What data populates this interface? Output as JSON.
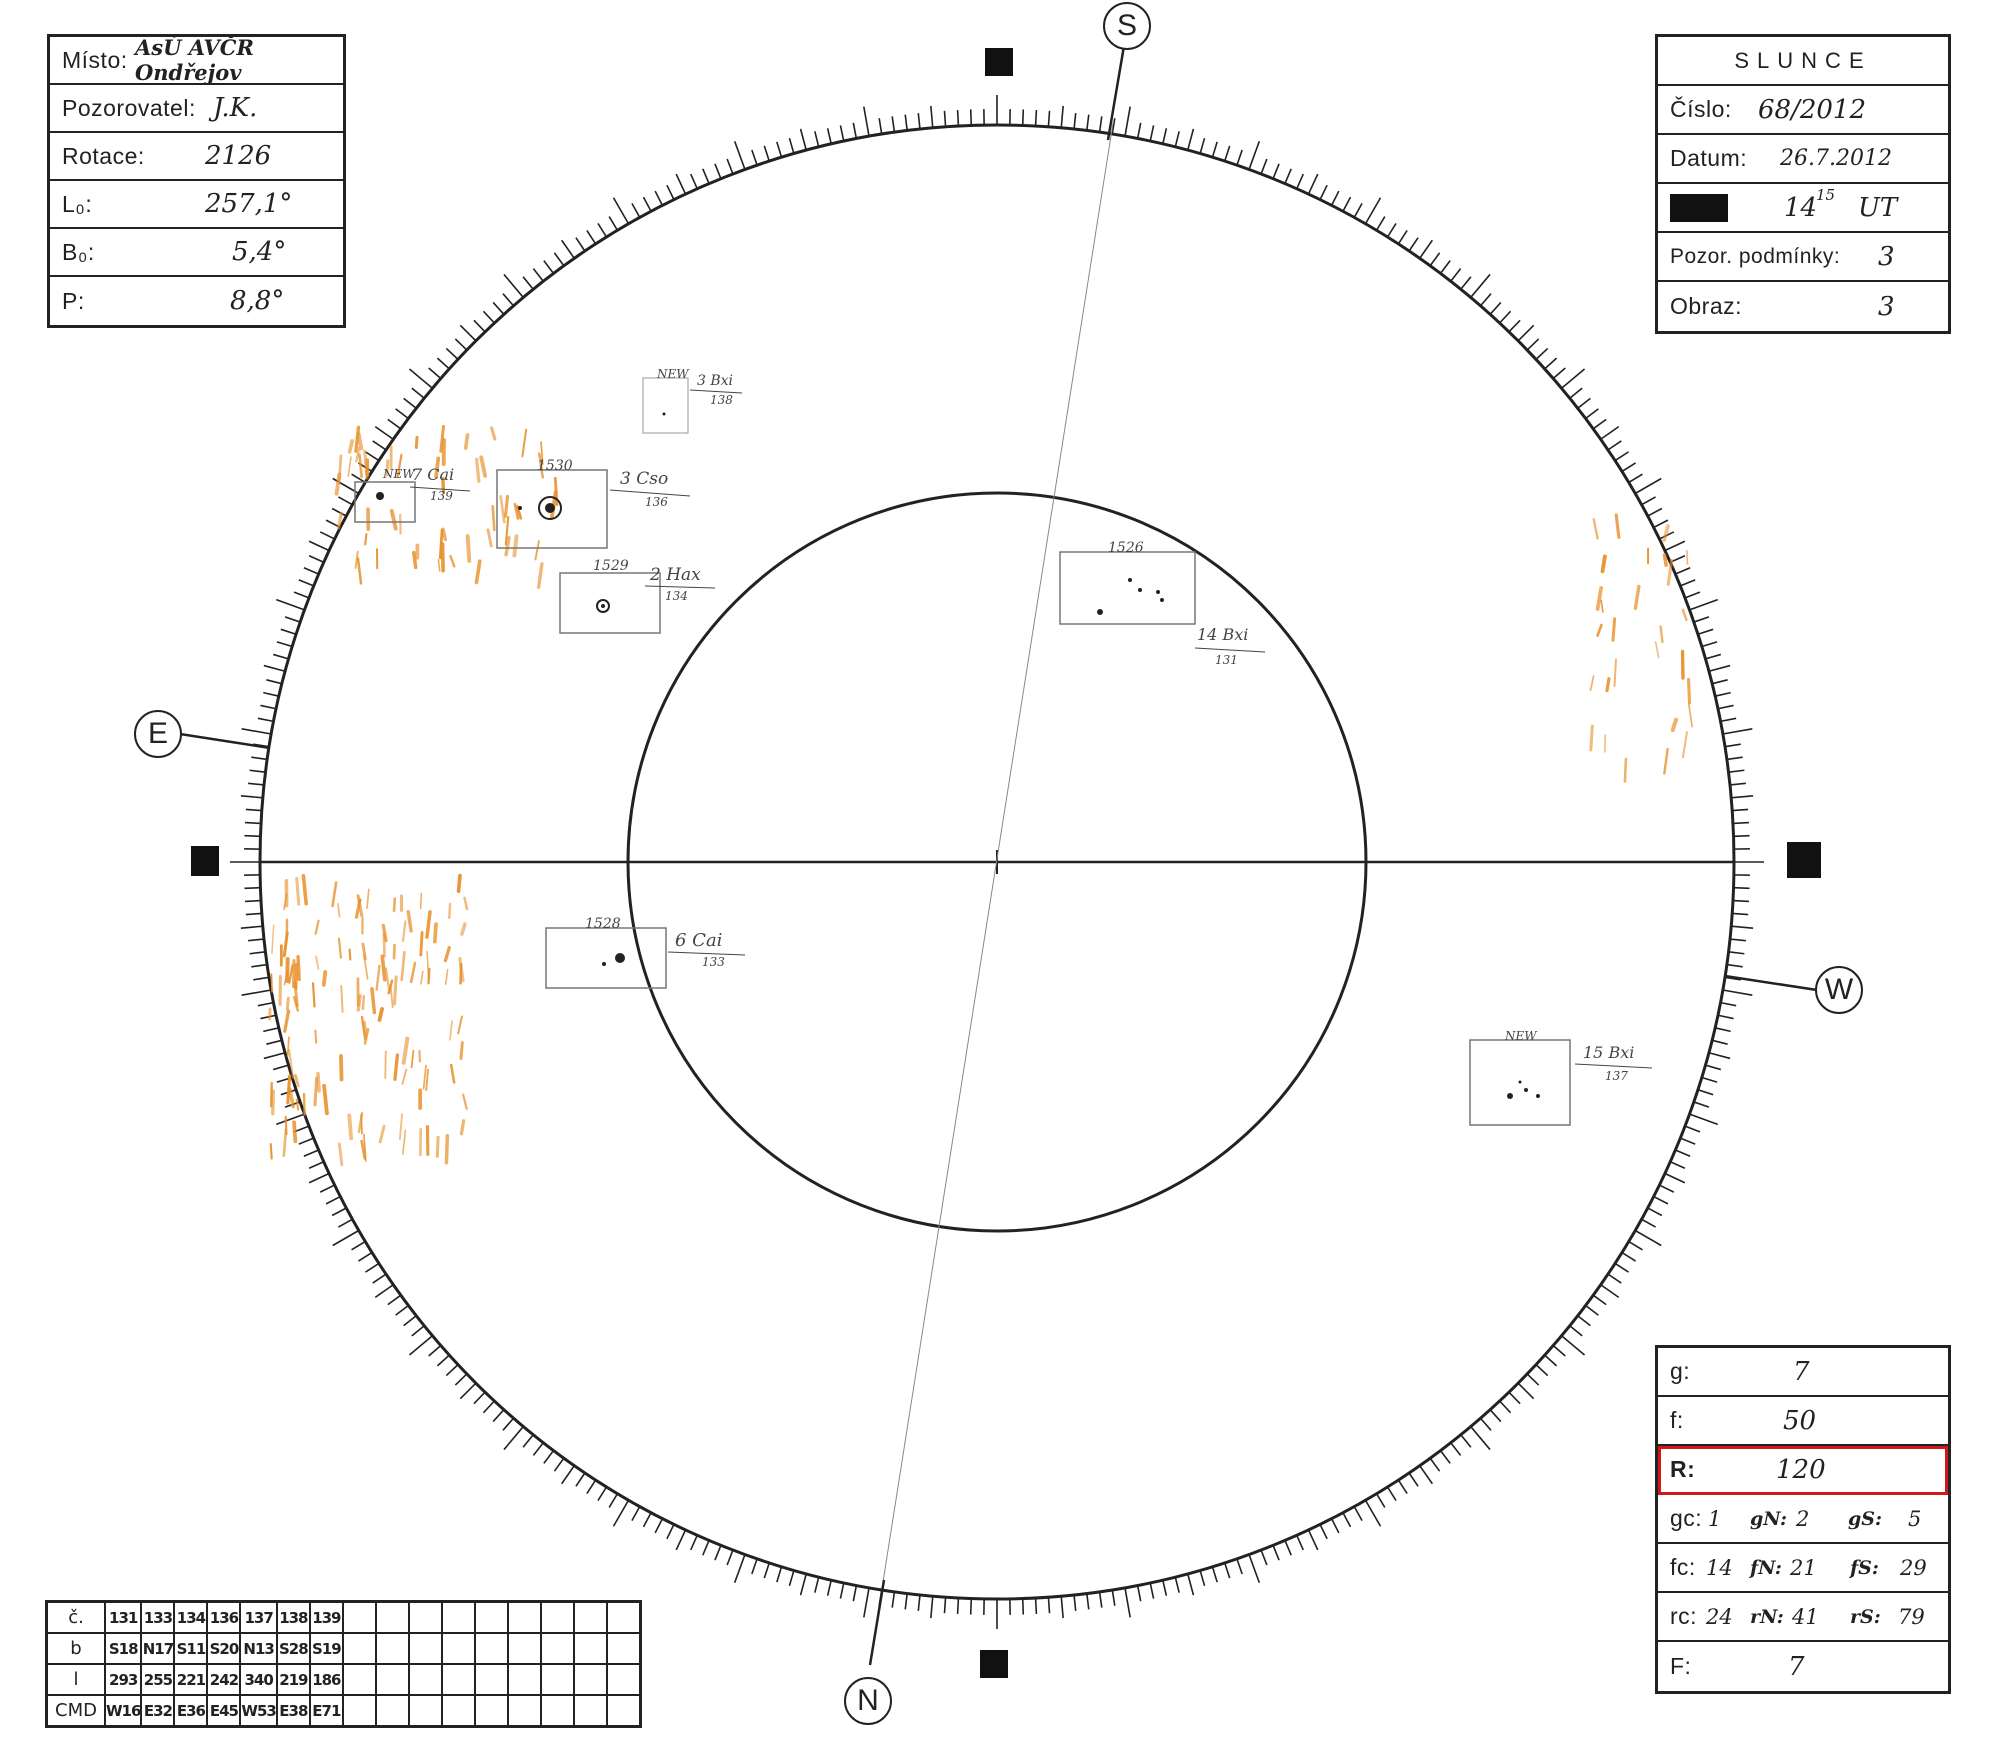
{
  "observation_info": {
    "location_label": "Místo:",
    "location_value": "AsÚ AVČR Ondřejov",
    "observer_label": "Pozorovatel:",
    "observer_value": "J.K.",
    "rotation_label": "Rotace:",
    "rotation_value": "2126",
    "l0_label": "L₀:",
    "l0_value": "257,1°",
    "b0_label": "B₀:",
    "b0_value": "5,4°",
    "p_label": "P:",
    "p_value": "8,8°"
  },
  "header_info": {
    "title": "SLUNCE",
    "number_label": "Číslo:",
    "number_value": "68/2012",
    "date_label": "Datum:",
    "date_value": "26.7.2012",
    "time_hour": "14",
    "time_minute": "15",
    "time_unit": "UT",
    "conditions_label": "Pozor. podmínky:",
    "conditions_value": "3",
    "image_label": "Obraz:",
    "image_value": "3"
  },
  "compass": {
    "south": "S",
    "north": "N",
    "east": "E",
    "west": "W"
  },
  "sunspot_groups": [
    {
      "id": "g1526",
      "number": "1526",
      "class": "14 Bxi",
      "sub": "131"
    },
    {
      "id": "g1528",
      "number": "1528",
      "class": "6 Cai",
      "sub": "133"
    },
    {
      "id": "g1529",
      "number": "1529",
      "class": "2 Hax",
      "sub": "134"
    },
    {
      "id": "g1530",
      "number": "1530",
      "class": "3 Cso",
      "sub": "136"
    },
    {
      "id": "gnew1",
      "number": "NEW",
      "class": "7 Cai",
      "sub": "139"
    },
    {
      "id": "gnew2",
      "number": "NEW",
      "class": "3 Bxi",
      "sub": "138"
    },
    {
      "id": "gnew3",
      "number": "NEW",
      "class": "15 Bxi",
      "sub": "137"
    }
  ],
  "counts": {
    "g_label": "g:",
    "g_value": "7",
    "f_label": "f:",
    "f_value": "50",
    "r_label": "R:",
    "r_value": "120",
    "gc_label": "gc:",
    "gc_value": "1",
    "gn_label": "gN:",
    "gn_value": "2",
    "gs_label": "gS:",
    "gs_value": "5",
    "fc_label": "fc:",
    "fc_value": "14",
    "fn_label": "fN:",
    "fn_value": "21",
    "fs_label": "fS:",
    "fs_value": "29",
    "rc_label": "rc:",
    "rc_value": "24",
    "rn_label": "rN:",
    "rn_value": "41",
    "rs_label": "rS:",
    "rs_value": "79",
    "F_label": "F:",
    "F_value": "7"
  },
  "position_table": {
    "row_labels": [
      "č.",
      "b",
      "l",
      "CMD"
    ],
    "rows": [
      [
        "131",
        "133",
        "134",
        "136",
        "137",
        "138",
        "139"
      ],
      [
        "S18",
        "N17",
        "S11",
        "S20",
        "N13",
        "S28",
        "S19"
      ],
      [
        "293",
        "255",
        "221",
        "242",
        "340",
        "219",
        "186"
      ],
      [
        "W16",
        "E32",
        "E36",
        "E45",
        "W53",
        "E38",
        "E71"
      ]
    ],
    "empty_columns": 9
  },
  "colors": {
    "ink": "#222222",
    "faculae": "#e8902a",
    "highlight": "#d01818"
  }
}
